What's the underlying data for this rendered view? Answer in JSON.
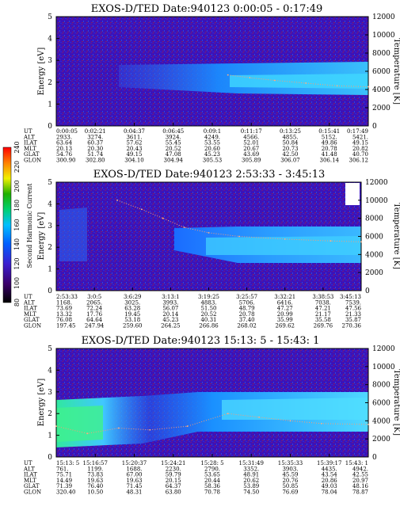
{
  "chart_data": [
    {
      "type": "heatmap",
      "title": "EXOS-D/TED   Date:940123  0:00:05 - 0:17:49",
      "ylabel": "Energy [eV]",
      "y2label": "Temperature [K]",
      "ylim": [
        0,
        5
      ],
      "y2lim": [
        0,
        12000
      ],
      "y_ticks": [
        "0",
        "1",
        "2",
        "3",
        "4",
        "5"
      ],
      "y2_ticks": [
        "0",
        "2000",
        "4000",
        "6000",
        "8000",
        "10000",
        "12000"
      ],
      "temperature_x": [
        0.55,
        0.62,
        0.7,
        0.8,
        0.9,
        1.0
      ],
      "temperature_y": [
        5600,
        5300,
        5000,
        4700,
        4400,
        4300
      ],
      "ephemeris": {
        "labels": [
          "UT",
          "ALT",
          "ILAT",
          "MLT",
          "GLAT",
          "GLON"
        ],
        "columns": [
          [
            "0:00:05",
            "2933.",
            "63.64",
            "20.13",
            "54.76",
            "300.90"
          ],
          [
            "0:02:21",
            "3274.",
            "60.37",
            "20.30",
            "51.74",
            "302.80"
          ],
          [
            "0:04:37",
            "3611.",
            "57.62",
            "20.43",
            "49.15",
            "304.10"
          ],
          [
            "0:06:45",
            "3924.",
            "55.45",
            "20.52",
            "47.08",
            "304.94"
          ],
          [
            "0:09:1",
            "4249.",
            "53.55",
            "20.60",
            "45.23",
            "305.53"
          ],
          [
            "0:11:17",
            "4566.",
            "52.01",
            "20.67",
            "43.69",
            "305.89"
          ],
          [
            "0:13:25",
            "4855.",
            "50.84",
            "20.73",
            "42.50",
            "306.07"
          ],
          [
            "0:15:41",
            "5152.",
            "49.86",
            "20.78",
            "41.48",
            "306.14"
          ],
          [
            "0:17:49",
            "5421.",
            "49.15",
            "20.82",
            "40.70",
            "306.12"
          ]
        ]
      }
    },
    {
      "type": "heatmap",
      "title": "EXOS-D/TED   Date:940123  2:53:33 - 3:45:13",
      "ylabel": "Energy [eV]",
      "y2label": "Temperature [K]",
      "ylim": [
        0,
        5
      ],
      "y2lim": [
        0,
        12000
      ],
      "y_ticks": [
        "0",
        "1",
        "2",
        "3",
        "4",
        "5"
      ],
      "y2_ticks": [
        "0",
        "2000",
        "4000",
        "6000",
        "8000",
        "10000",
        "12000"
      ],
      "temperature_x": [
        0.2,
        0.28,
        0.35,
        0.42,
        0.5,
        0.6,
        0.75,
        0.9,
        1.0
      ],
      "temperature_y": [
        10000,
        9000,
        8000,
        7000,
        6400,
        6000,
        5700,
        5500,
        5400
      ],
      "colorbar": {
        "label": "Second Harmonic Current",
        "ticks": [
          "80",
          "100",
          "120",
          "140",
          "160",
          "180",
          "200",
          "220",
          "240"
        ],
        "colors": [
          "#000000",
          "#3a006a",
          "#3b1fd0",
          "#0060ff",
          "#00c0ff",
          "#00d070",
          "#20b000",
          "#f0f000",
          "#ff8000",
          "#ff0000"
        ]
      },
      "ephemeris": {
        "labels": [
          "UT",
          "ALT",
          "ILAT",
          "MLT",
          "GLAT",
          "GLON"
        ],
        "columns": [
          [
            "2:53:33",
            "1168.",
            "73.69",
            "13.32",
            "76.08",
            "197.45"
          ],
          [
            "3:0:5",
            "2065.",
            "72.24",
            "17.76",
            "64.64",
            "247.94"
          ],
          [
            "3:6:29",
            "3025.",
            "63.28",
            "19.45",
            "53.18",
            "259.60"
          ],
          [
            "3:13:1",
            "3993.",
            "56.07",
            "20.14",
            "45.23",
            "264.25"
          ],
          [
            "3:19:25",
            "4883.",
            "51.50",
            "20.52",
            "40.31",
            "266.86"
          ],
          [
            "3:25:57",
            "5706.",
            "48.79",
            "20.78",
            "37.40",
            "268.02"
          ],
          [
            "3:32:21",
            "6416.",
            "47.27",
            "20.99",
            "35.99",
            "269.62"
          ],
          [
            "3:38:53",
            "7038.",
            "47.21",
            "21.17",
            "35.58",
            "269.76"
          ],
          [
            "3:45:13",
            "7539.",
            "47.56",
            "21.33",
            "35.87",
            "270.36"
          ]
        ]
      }
    },
    {
      "type": "heatmap",
      "title": "EXOS-D/TED   Date:940123  15:13: 5 - 15:43: 1",
      "ylabel": "Energy [eV]",
      "y2label": "Temperature [K]",
      "ylim": [
        0,
        5
      ],
      "y2lim": [
        0,
        12000
      ],
      "y_ticks": [
        "0",
        "1",
        "2",
        "3",
        "4",
        "5"
      ],
      "y2_ticks": [
        "0",
        "2000",
        "4000",
        "6000",
        "8000",
        "10000",
        "12000"
      ],
      "temperature_x": [
        0.0,
        0.1,
        0.2,
        0.3,
        0.42,
        0.55,
        0.65,
        0.75,
        0.85,
        1.0
      ],
      "temperature_y": [
        3400,
        2600,
        3200,
        3000,
        3400,
        4800,
        4400,
        4000,
        3700,
        3600
      ],
      "ephemeris": {
        "labels": [
          "UT",
          "ALT",
          "ILAT",
          "MLT",
          "GLAT",
          "GLON"
        ],
        "columns": [
          [
            "15:13: 5",
            "761.",
            "75.71",
            "14.49",
            "71.39",
            "320.40"
          ],
          [
            "15:16:57",
            "1199.",
            "73.83",
            "19.63",
            "76.40",
            "10.50"
          ],
          [
            "15:20:37",
            "1688.",
            "67.00",
            "19.63",
            "71.45",
            "48.31"
          ],
          [
            "15:24:21",
            "2230.",
            "59.79",
            "20.15",
            "64.37",
            "63.80"
          ],
          [
            "15:28: 5",
            "2790.",
            "53.65",
            "20.44",
            "58.36",
            "70.78"
          ],
          [
            "15:31:49",
            "3352.",
            "48.91",
            "20.62",
            "53.89",
            "74.50"
          ],
          [
            "15:35:33",
            "3903.",
            "45.59",
            "20.76",
            "50.85",
            "76.69"
          ],
          [
            "15:39:17",
            "4435.",
            "43.54",
            "20.86",
            "49.03",
            "78.04"
          ],
          [
            "15:43: 1",
            "4942.",
            "42.55",
            "20.97",
            "48.16",
            "78.87"
          ]
        ]
      }
    }
  ]
}
